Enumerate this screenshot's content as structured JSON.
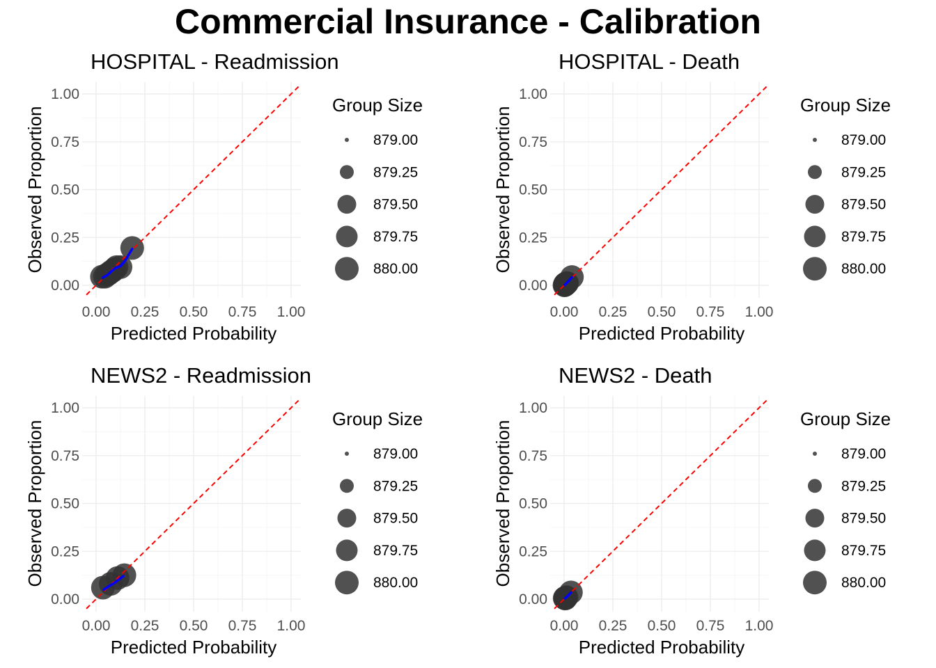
{
  "title": "Commercial Insurance - Calibration",
  "colors": {
    "point": "#333333",
    "point_alpha": 0.85,
    "smooth": "#0000ff",
    "reference": "#ff0000",
    "grid": "#ebebeb"
  },
  "chart_data": [
    {
      "type": "scatter",
      "title": "HOSPITAL - Readmission",
      "xlabel": "Predicted Probability",
      "ylabel": "Observed Proportion",
      "xlim": [
        0,
        1
      ],
      "ylim": [
        0,
        1
      ],
      "x_ticks": [
        "0.00",
        "0.25",
        "0.50",
        "0.75",
        "1.00"
      ],
      "y_ticks": [
        "0.00",
        "0.25",
        "0.50",
        "0.75",
        "1.00"
      ],
      "grid": true,
      "reference_line": "y = x (dashed, red)",
      "points": [
        {
          "x": 0.03,
          "y": 0.045,
          "size": 880
        },
        {
          "x": 0.045,
          "y": 0.045,
          "size": 880
        },
        {
          "x": 0.055,
          "y": 0.055,
          "size": 880
        },
        {
          "x": 0.065,
          "y": 0.06,
          "size": 880
        },
        {
          "x": 0.075,
          "y": 0.07,
          "size": 880
        },
        {
          "x": 0.085,
          "y": 0.075,
          "size": 880
        },
        {
          "x": 0.095,
          "y": 0.085,
          "size": 880
        },
        {
          "x": 0.105,
          "y": 0.095,
          "size": 880
        },
        {
          "x": 0.125,
          "y": 0.095,
          "size": 880
        },
        {
          "x": 0.185,
          "y": 0.195,
          "size": 880
        }
      ],
      "smooth": [
        [
          0.035,
          0.04
        ],
        [
          0.06,
          0.055
        ],
        [
          0.08,
          0.075
        ],
        [
          0.1,
          0.09
        ],
        [
          0.125,
          0.1
        ],
        [
          0.15,
          0.13
        ],
        [
          0.185,
          0.19
        ]
      ],
      "legend": {
        "title": "Group Size",
        "position": "right",
        "entries": [
          "879.00",
          "879.25",
          "879.50",
          "879.75",
          "880.00"
        ]
      }
    },
    {
      "type": "scatter",
      "title": "HOSPITAL - Death",
      "xlabel": "Predicted Probability",
      "ylabel": "Observed Proportion",
      "xlim": [
        0,
        1
      ],
      "ylim": [
        0,
        1
      ],
      "x_ticks": [
        "0.00",
        "0.25",
        "0.50",
        "0.75",
        "1.00"
      ],
      "y_ticks": [
        "0.00",
        "0.25",
        "0.50",
        "0.75",
        "1.00"
      ],
      "grid": true,
      "reference_line": "y = x (dashed, red)",
      "points": [
        {
          "x": 0.002,
          "y": 0.0,
          "size": 880
        },
        {
          "x": 0.004,
          "y": 0.002,
          "size": 880
        },
        {
          "x": 0.005,
          "y": 0.006,
          "size": 880
        },
        {
          "x": 0.006,
          "y": 0.004,
          "size": 880
        },
        {
          "x": 0.007,
          "y": 0.008,
          "size": 880
        },
        {
          "x": 0.008,
          "y": 0.005,
          "size": 880
        },
        {
          "x": 0.01,
          "y": 0.01,
          "size": 880
        },
        {
          "x": 0.012,
          "y": 0.01,
          "size": 880
        },
        {
          "x": 0.015,
          "y": 0.012,
          "size": 880
        },
        {
          "x": 0.04,
          "y": 0.043,
          "size": 880
        }
      ],
      "smooth": [
        [
          0.003,
          0.001
        ],
        [
          0.008,
          0.007
        ],
        [
          0.015,
          0.014
        ],
        [
          0.025,
          0.024
        ],
        [
          0.04,
          0.042
        ]
      ],
      "legend": {
        "title": "Group Size",
        "position": "right",
        "entries": [
          "879.00",
          "879.25",
          "879.50",
          "879.75",
          "880.00"
        ]
      }
    },
    {
      "type": "scatter",
      "title": "NEWS2 - Readmission",
      "xlabel": "Predicted Probability",
      "ylabel": "Observed Proportion",
      "xlim": [
        0,
        1
      ],
      "ylim": [
        0,
        1
      ],
      "x_ticks": [
        "0.00",
        "0.25",
        "0.50",
        "0.75",
        "1.00"
      ],
      "y_ticks": [
        "0.00",
        "0.25",
        "0.50",
        "0.75",
        "1.00"
      ],
      "grid": true,
      "reference_line": "y = x (dashed, red)",
      "points": [
        {
          "x": 0.035,
          "y": 0.06,
          "size": 880
        },
        {
          "x": 0.075,
          "y": 0.08,
          "size": 880
        },
        {
          "x": 0.11,
          "y": 0.11,
          "size": 880
        },
        {
          "x": 0.145,
          "y": 0.125,
          "size": 880
        }
      ],
      "smooth": [
        [
          0.04,
          0.05
        ],
        [
          0.07,
          0.07
        ],
        [
          0.095,
          0.085
        ],
        [
          0.12,
          0.105
        ],
        [
          0.14,
          0.12
        ]
      ],
      "legend": {
        "title": "Group Size",
        "position": "right",
        "entries": [
          "879.00",
          "879.25",
          "879.50",
          "879.75",
          "880.00"
        ]
      }
    },
    {
      "type": "scatter",
      "title": "NEWS2 - Death",
      "xlabel": "Predicted Probability",
      "ylabel": "Observed Proportion",
      "xlim": [
        0,
        1
      ],
      "ylim": [
        0,
        1
      ],
      "x_ticks": [
        "0.00",
        "0.25",
        "0.50",
        "0.75",
        "1.00"
      ],
      "y_ticks": [
        "0.00",
        "0.25",
        "0.50",
        "0.75",
        "1.00"
      ],
      "grid": true,
      "reference_line": "y = x (dashed, red)",
      "points": [
        {
          "x": 0.003,
          "y": 0.005,
          "size": 880
        },
        {
          "x": 0.006,
          "y": 0.003,
          "size": 880
        },
        {
          "x": 0.008,
          "y": 0.008,
          "size": 880
        },
        {
          "x": 0.012,
          "y": 0.01,
          "size": 880
        },
        {
          "x": 0.035,
          "y": 0.035,
          "size": 880
        }
      ],
      "smooth": [
        [
          0.005,
          0.004
        ],
        [
          0.012,
          0.01
        ],
        [
          0.02,
          0.018
        ],
        [
          0.035,
          0.034
        ]
      ],
      "legend": {
        "title": "Group Size",
        "position": "right",
        "entries": [
          "879.00",
          "879.25",
          "879.50",
          "879.75",
          "880.00"
        ]
      }
    }
  ]
}
